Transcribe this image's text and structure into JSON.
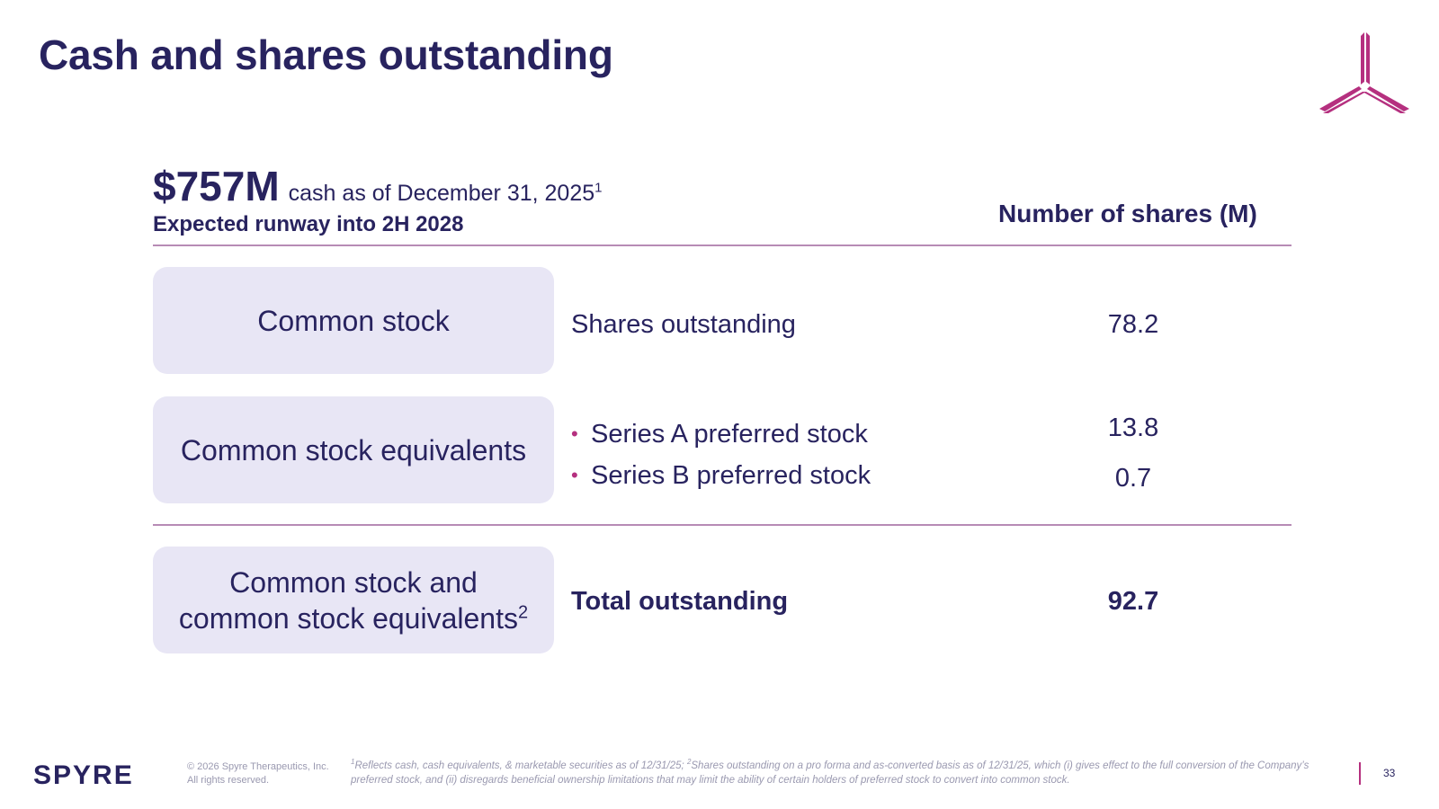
{
  "title": "Cash and shares outstanding",
  "cash": {
    "amount": "$757M",
    "description": "cash as of December 31, 2025",
    "footnote_ref": "1",
    "runway": "Expected runway into 2H 2028"
  },
  "table": {
    "column_header": "Number of shares (M)",
    "rows": [
      {
        "category": "Common stock",
        "label": "Shares outstanding",
        "value": "78.2"
      },
      {
        "category": "Common stock equivalents",
        "items": [
          {
            "label": "Series A preferred stock",
            "value": "13.8"
          },
          {
            "label": "Series B preferred stock",
            "value": "0.7"
          }
        ]
      }
    ],
    "total": {
      "category_line1": "Common stock and",
      "category_line2": "common stock equivalents",
      "footnote_ref": "2",
      "label": "Total outstanding",
      "value": "92.7"
    }
  },
  "footer": {
    "brand": "SPYRE",
    "copyright_line1": "© 2026 Spyre Therapeutics, Inc.",
    "copyright_line2": "All rights reserved.",
    "footnote_1_ref": "1",
    "footnote_1": "Reflects cash, cash equivalents, & marketable securities as of 12/31/25; ",
    "footnote_2_ref": "2",
    "footnote_2": "Shares outstanding on a pro forma and as-converted basis as of 12/31/25, which (i) gives effect to the full conversion of the Company’s preferred stock, and (ii) disregards beneficial ownership limitations that may limit the ability of certain holders of preferred stock to convert into common stock.",
    "page_number": "33"
  },
  "colors": {
    "navy": "#28235f",
    "magenta": "#b5307f",
    "box_fill": "#e8e6f5",
    "rule": "#b78bb5"
  },
  "icons": {
    "logo": "spyre-tri-blade-logo-icon",
    "bullet": "bullet-dot-icon"
  }
}
